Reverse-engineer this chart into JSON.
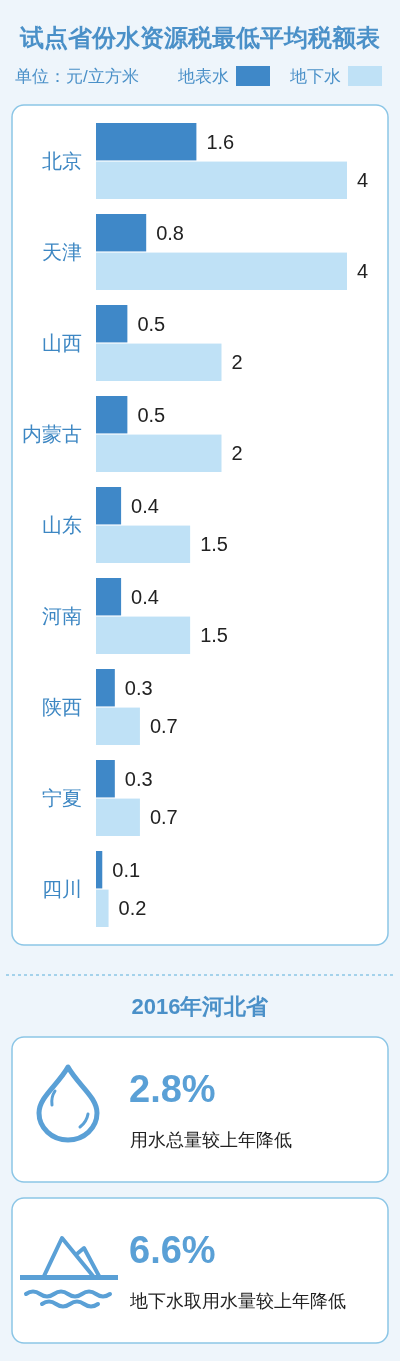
{
  "chart_data": [
    {
      "type": "bar",
      "orientation": "horizontal",
      "title": "试点省份水资源税最低平均税额表",
      "annotations": [
        "单位：元/立方米"
      ],
      "categories": [
        "北京",
        "天津",
        "山西",
        "内蒙古",
        "山东",
        "河南",
        "陕西",
        "宁夏",
        "四川"
      ],
      "series": [
        {
          "name": "地表水",
          "color": "#3f88c8",
          "values": [
            1.6,
            0.8,
            0.5,
            0.5,
            0.4,
            0.4,
            0.3,
            0.3,
            0.1
          ]
        },
        {
          "name": "地下水",
          "color": "#bfe1f6",
          "values": [
            4,
            4,
            2,
            2,
            1.5,
            1.5,
            0.7,
            0.7,
            0.2
          ]
        }
      ],
      "data_labels": true,
      "legend": "top right"
    },
    {
      "type": "other",
      "title": "2016年河北省",
      "annotations": [
        "2.8%",
        "用水总量较上年降低",
        "6.6%",
        "地下水取用水量较上年降低"
      ]
    }
  ]
}
